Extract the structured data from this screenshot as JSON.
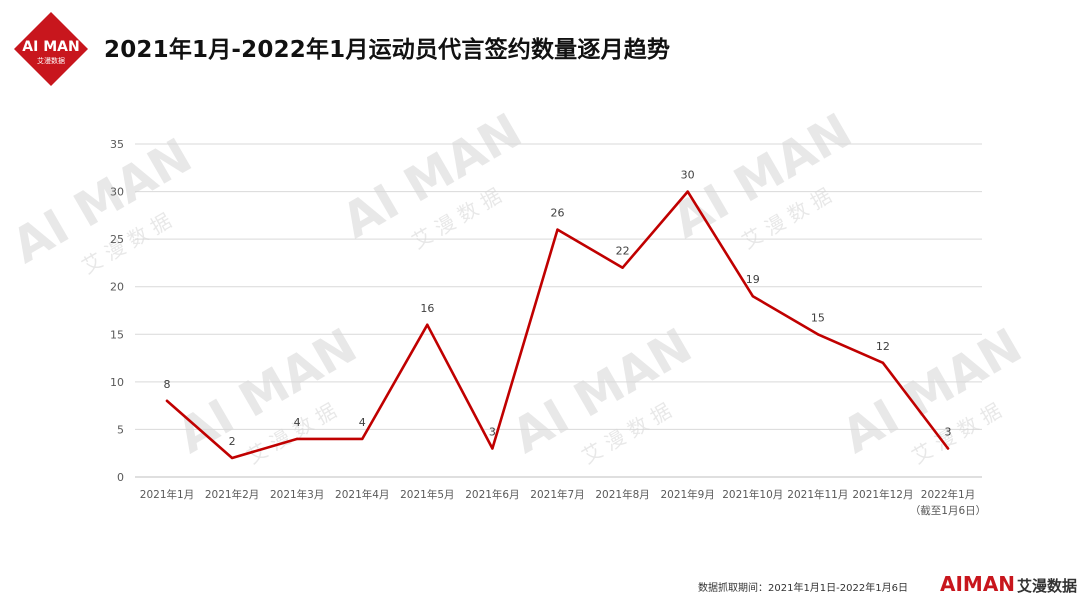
{
  "brand": {
    "logo_text": "AI MAN",
    "logo_subtitle": "艾漫数据",
    "footer_logo_ai": "AI",
    "footer_logo_man": "MAN",
    "footer_logo_cn": "艾漫数据",
    "watermark_text": "AI MAN",
    "watermark_subtitle": "艾 漫 数 据",
    "color_accent": "#c8161d"
  },
  "title": "2021年1月-2022年1月运动员代言签约数量逐月趋势",
  "footnote": "数据抓取期间：2021年1月1日-2022年1月6日",
  "chart_data": {
    "type": "line",
    "title": "2021年1月-2022年1月运动员代言签约数量逐月趋势",
    "categories": [
      "2021年1月",
      "2021年2月",
      "2021年3月",
      "2021年4月",
      "2021年5月",
      "2021年6月",
      "2021年7月",
      "2021年8月",
      "2021年9月",
      "2021年10月",
      "2021年11月",
      "2021年12月",
      "2022年1月"
    ],
    "category_note": {
      "index": 12,
      "text": "（截至1月6日）"
    },
    "series": [
      {
        "values": [
          8,
          2,
          4,
          4,
          16,
          3,
          26,
          22,
          30,
          19,
          15,
          12,
          3
        ],
        "color": "#c00000"
      }
    ],
    "xlabel": "",
    "ylabel": "",
    "ylim": [
      0,
      35
    ],
    "yticks": [
      0,
      5,
      10,
      15,
      20,
      25,
      30,
      35
    ],
    "grid": true,
    "data_labels": true,
    "legend": "none"
  }
}
